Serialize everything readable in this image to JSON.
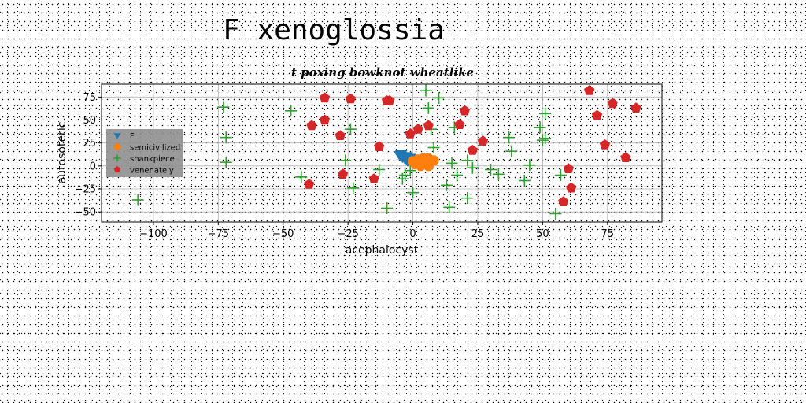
{
  "suptitle": "F xenoglossia",
  "chart_data": {
    "type": "scatter",
    "title": "t poxing bowknot wheatlike",
    "xlabel": "acephalocyst",
    "ylabel": "autosoteric",
    "xlim": [
      -120,
      96
    ],
    "ylim": [
      -61,
      89
    ],
    "xticks": [
      -100,
      -75,
      -50,
      -25,
      0,
      25,
      50,
      75
    ],
    "yticks": [
      -50,
      -25,
      0,
      25,
      50,
      75
    ],
    "grid": true,
    "legend_position": "center-left",
    "series": [
      {
        "name": "F",
        "marker": "triangle-down",
        "color": "#1f77b4",
        "x": [
          -5,
          -4,
          -3,
          -2,
          -1,
          -4.5,
          -2.5
        ],
        "y": [
          12,
          10,
          8,
          6,
          9,
          13,
          11
        ]
      },
      {
        "name": "semicivilized",
        "marker": "octagon",
        "color": "#ff7f0e",
        "x": [
          0,
          2,
          3,
          4,
          5,
          6,
          7,
          8,
          1,
          3,
          5,
          2,
          6,
          4
        ],
        "y": [
          5,
          7,
          3,
          6,
          4,
          8,
          5,
          6,
          2,
          0,
          2,
          4,
          0,
          8
        ]
      },
      {
        "name": "shankpiece",
        "marker": "plus",
        "color": "#2ca02c",
        "x": [
          -106,
          -73,
          -72,
          -72,
          -47,
          -43,
          -26,
          -24,
          -23,
          -13,
          -10,
          -4,
          -3,
          -1,
          0,
          5,
          6,
          7,
          8,
          10,
          13,
          14,
          15,
          16,
          17,
          21,
          21,
          23,
          30,
          33,
          37,
          38,
          43,
          45,
          49,
          50,
          51,
          51,
          55,
          57
        ],
        "y": [
          -37,
          64,
          31,
          4,
          60,
          -12,
          6,
          40,
          -24,
          -4,
          -46,
          -14,
          -10,
          -5,
          -29,
          82,
          63,
          40,
          20,
          74,
          -21,
          -45,
          3,
          42,
          -10,
          -35,
          6,
          -2,
          -4,
          -9,
          31,
          16,
          -16,
          1,
          42,
          28,
          57,
          30,
          -52,
          -10
        ]
      },
      {
        "name": "venenately",
        "marker": "pentagon",
        "color": "#d62728",
        "x": [
          -40,
          -39,
          -34,
          -34,
          -28,
          -27,
          -24,
          -15,
          -13,
          -10,
          -9,
          -1,
          2,
          6,
          18,
          20,
          23,
          27,
          60,
          61,
          58,
          68,
          71,
          74,
          77,
          82,
          86
        ],
        "y": [
          -20,
          44,
          74,
          50,
          33,
          -9,
          73,
          -14,
          21,
          71,
          71,
          35,
          40,
          44,
          45,
          60,
          17,
          27,
          -3,
          -24,
          -39,
          82,
          55,
          23,
          68,
          9,
          63
        ]
      }
    ]
  }
}
